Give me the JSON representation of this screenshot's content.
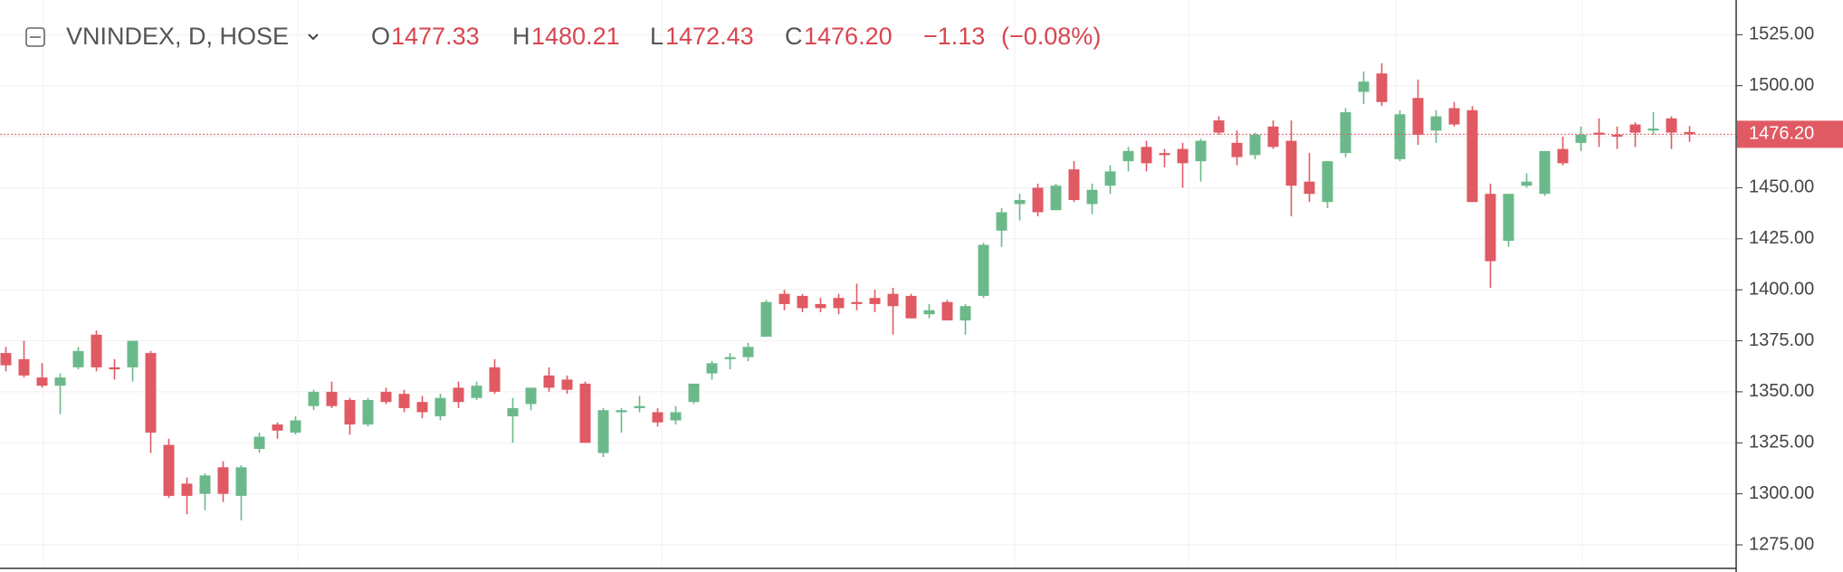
{
  "chart_data": {
    "type": "candlestick",
    "legend": {
      "symbol": "VNINDEX, D, HOSE",
      "open_prefix": "O",
      "open": 1477.33,
      "high_prefix": "H",
      "high": 1480.21,
      "low_prefix": "L",
      "low": 1472.43,
      "close_prefix": "C",
      "close": {
        "value": 1476.2,
        "label": "1476.20"
      },
      "change": {
        "value": -1.13,
        "label": "−1.13"
      },
      "change_pct": {
        "value": -0.08,
        "label": "(−0.08%)"
      }
    },
    "series": {
      "open": [
        1369,
        1366,
        1357,
        1353,
        1362,
        1378,
        1362,
        1362,
        1369,
        1324,
        1305,
        1300,
        1313,
        1299,
        1322,
        1334,
        1330,
        1343,
        1350,
        1346,
        1334,
        1350,
        1349,
        1345,
        1338,
        1352,
        1347,
        1362,
        1338,
        1344,
        1358,
        1356,
        1354,
        1320,
        1340,
        1342,
        1340,
        1336,
        1345,
        1359,
        1366,
        1367,
        1377,
        1398,
        1397,
        1393,
        1396,
        1394,
        1396,
        1398,
        1397,
        1388,
        1394,
        1385,
        1397,
        1429,
        1442,
        1450,
        1439,
        1459,
        1442,
        1451,
        1463,
        1470,
        1467,
        1469,
        1463,
        1483,
        1472,
        1466,
        1480,
        1473,
        1453,
        1443,
        1467,
        1497,
        1506,
        1464,
        1494,
        1478,
        1489,
        1488,
        1447,
        1424,
        1451,
        1447,
        1469,
        1472,
        1477,
        1476,
        1481,
        1478,
        1484,
        1477.33
      ],
      "high": [
        1372,
        1375,
        1364,
        1359,
        1372,
        1380,
        1366,
        1375,
        1370,
        1327,
        1308,
        1310,
        1316,
        1314,
        1330,
        1335,
        1338,
        1351,
        1355,
        1347,
        1347,
        1352,
        1351,
        1348,
        1349,
        1355,
        1355,
        1366,
        1347,
        1352,
        1362,
        1358,
        1355,
        1342,
        1342,
        1348,
        1342,
        1343,
        1354,
        1365,
        1369,
        1374,
        1395,
        1400,
        1398,
        1396,
        1398,
        1403,
        1400,
        1401,
        1398,
        1393,
        1395,
        1393,
        1423,
        1440,
        1447,
        1452,
        1452,
        1463,
        1452,
        1461,
        1470,
        1473,
        1469,
        1472,
        1474,
        1485,
        1478,
        1477,
        1483,
        1483,
        1467,
        1463,
        1489,
        1507,
        1511,
        1488,
        1503,
        1488,
        1492,
        1490,
        1452,
        1447,
        1457,
        1468,
        1475,
        1480,
        1484,
        1480,
        1482,
        1487,
        1485,
        1480.21
      ],
      "low": [
        1360,
        1357,
        1352,
        1339,
        1361,
        1360,
        1356,
        1355,
        1320,
        1298,
        1290,
        1292,
        1296,
        1287,
        1320,
        1327,
        1329,
        1341,
        1342,
        1329,
        1333,
        1344,
        1340,
        1337,
        1336,
        1342,
        1346,
        1349,
        1325,
        1341,
        1350,
        1349,
        1325,
        1318,
        1330,
        1340,
        1333,
        1334,
        1344,
        1356,
        1361,
        1365,
        1377,
        1390,
        1389,
        1389,
        1388,
        1390,
        1389,
        1378,
        1386,
        1386,
        1385,
        1378,
        1396,
        1421,
        1434,
        1436,
        1439,
        1443,
        1437,
        1447,
        1458,
        1458,
        1460,
        1450,
        1453,
        1476,
        1461,
        1464,
        1469,
        1436,
        1443,
        1440,
        1465,
        1491,
        1490,
        1463,
        1471,
        1472,
        1480,
        1443,
        1401,
        1421,
        1450,
        1446,
        1461,
        1468,
        1470,
        1469,
        1470,
        1476,
        1469,
        1472.43
      ],
      "close": [
        1363,
        1358,
        1353,
        1357,
        1370,
        1362,
        1361,
        1375,
        1330,
        1299,
        1299,
        1309,
        1300,
        1313,
        1328,
        1331,
        1336,
        1350,
        1343,
        1334,
        1346,
        1345,
        1342,
        1340,
        1347,
        1345,
        1353,
        1350,
        1342,
        1352,
        1352,
        1351,
        1325,
        1341,
        1341,
        1343,
        1335,
        1340,
        1354,
        1364,
        1367,
        1372,
        1394,
        1393,
        1391,
        1391,
        1391,
        1393,
        1393,
        1392,
        1386,
        1390,
        1385,
        1392,
        1422,
        1438,
        1444,
        1438,
        1451,
        1444,
        1449,
        1458,
        1468,
        1462,
        1466,
        1462,
        1473,
        1477,
        1465,
        1476,
        1470,
        1451,
        1447,
        1463,
        1487,
        1502,
        1492,
        1486,
        1476,
        1485,
        1481,
        1443,
        1414,
        1447,
        1453,
        1468,
        1462,
        1476,
        1476,
        1475,
        1477,
        1479,
        1477,
        1476.2
      ]
    },
    "up_color": "#6bb98a",
    "down_color": "#e05a63",
    "ylim": [
      1261.7,
      1542
    ],
    "yticks": [
      {
        "value": 1275,
        "label": "1275.00"
      },
      {
        "value": 1300,
        "label": "1300.00"
      },
      {
        "value": 1325,
        "label": "1325.00"
      },
      {
        "value": 1350,
        "label": "1350.00"
      },
      {
        "value": 1375,
        "label": "1375.00"
      },
      {
        "value": 1400,
        "label": "1400.00"
      },
      {
        "value": 1425,
        "label": "1425.00"
      },
      {
        "value": 1450,
        "label": "1450.00"
      },
      {
        "value": 1475,
        "label": "1475.00"
      },
      {
        "value": 1500,
        "label": "1500.00"
      },
      {
        "value": 1525,
        "label": "1525.00"
      }
    ],
    "grid": true
  }
}
